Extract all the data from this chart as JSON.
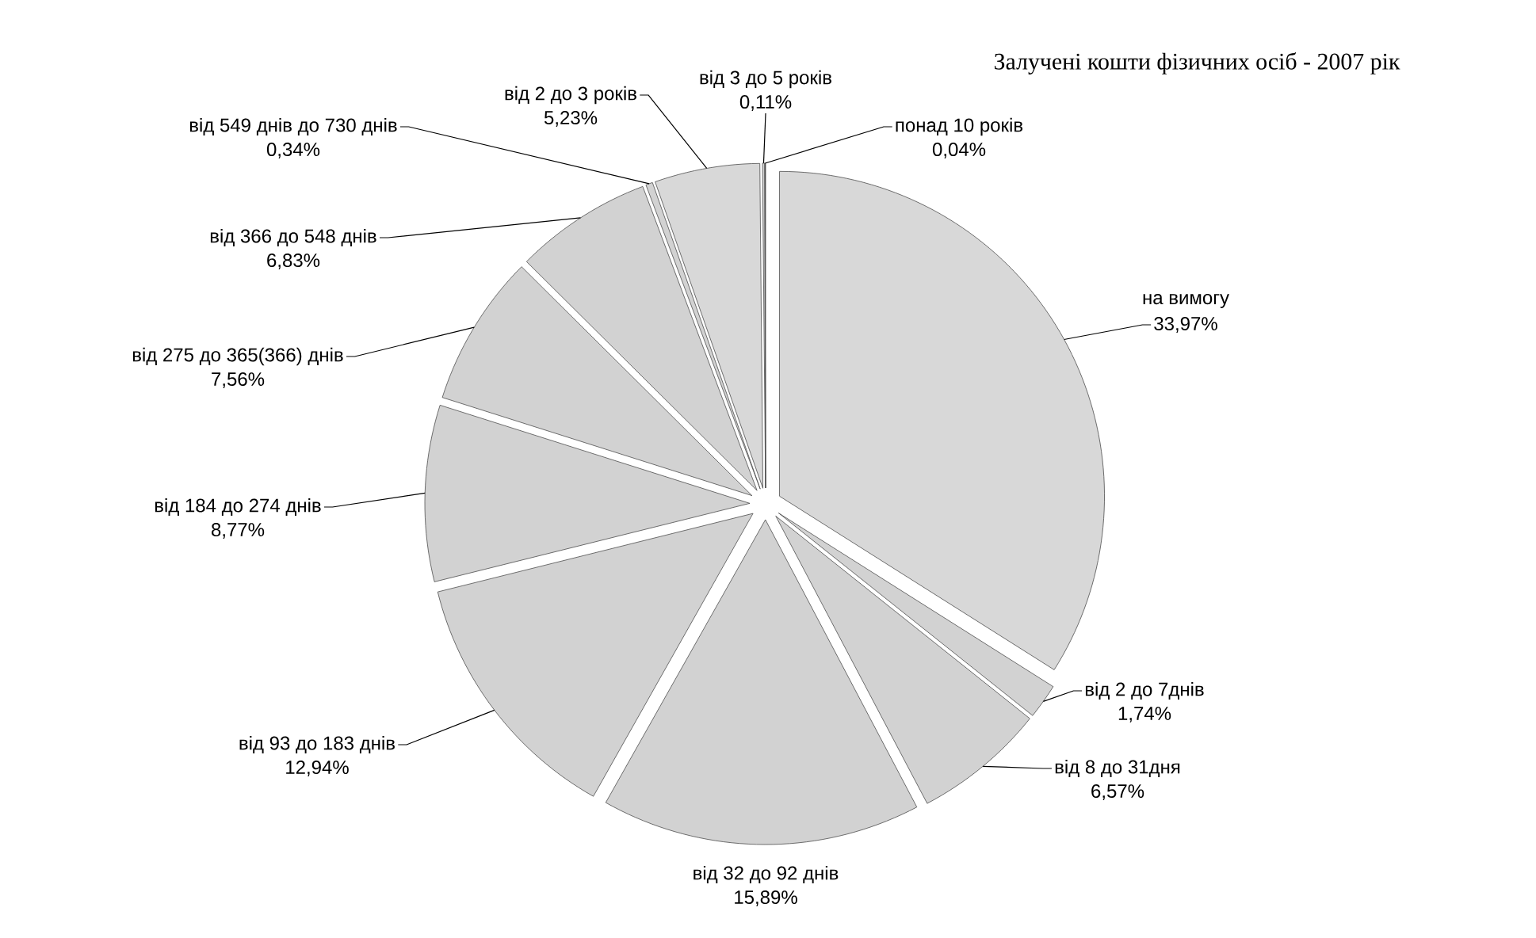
{
  "chart_data": {
    "type": "pie",
    "title": "Залучені кошти фізичних осіб - 2007 рік",
    "categories": [
      "на вимогу",
      "від 2 до 7днів",
      "від 8 до 31дня",
      "від 32 до 92 днів",
      "від 93 до 183 днів",
      "від 184 до 274 днів",
      "від 275 до 365(366) днів",
      "від 366 до 548 днів",
      "від 549 днів до 730 днів",
      "від 2 до 3 років",
      "від 3 до 5 років",
      "понад 10 років"
    ],
    "values": [
      33.97,
      1.74,
      6.57,
      15.89,
      12.94,
      8.77,
      7.56,
      6.83,
      0.34,
      5.23,
      0.11,
      0.04
    ],
    "value_labels": [
      "33,97%",
      "1,74%",
      "6,57%",
      "15,89%",
      "12,94%",
      "8,77%",
      "7,56%",
      "6,83%",
      "0,34%",
      "5,23%",
      "0,11%",
      "0,04%"
    ],
    "colors": [
      "#d8d8d8",
      "#d2d2d2",
      "#d2d2d2",
      "#d2d2d2",
      "#d2d2d2",
      "#d2d2d2",
      "#d2d2d2",
      "#d2d2d2",
      "#d2d2d2",
      "#d8d8d8",
      "#d2d2d2",
      "#555555"
    ]
  }
}
